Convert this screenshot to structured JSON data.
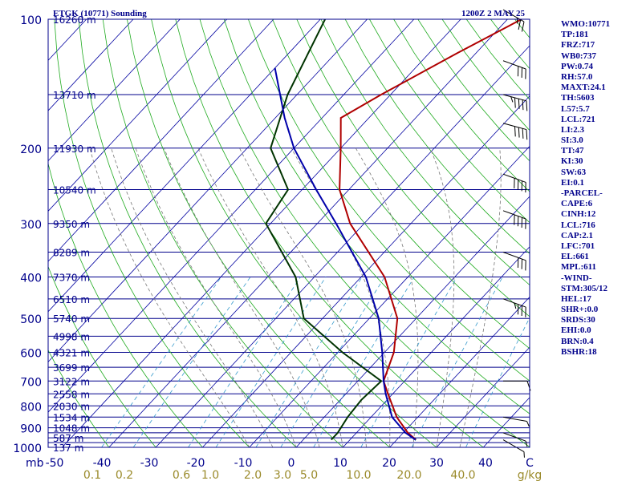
{
  "header": {
    "station": "ETGK (10771) Sounding",
    "time": "1200Z  2 MAY 25"
  },
  "height_labels": [
    "16260 m",
    "13710 m",
    "11930 m",
    "10540 m",
    "9350 m",
    "8289 m",
    "7370 m",
    "6510 m",
    "5740 m",
    "4998 m",
    "4321 m",
    "3699 m",
    "3122 m",
    "2558 m",
    "2030 m",
    "1534 m",
    "1048 m",
    "587 m",
    "137 m"
  ],
  "pressure_labels": [
    "100",
    "200",
    "300",
    "400",
    "500",
    "600",
    "700",
    "800",
    "900",
    "1000"
  ],
  "pressure_unit": "mb",
  "temp_labels": [
    "-50",
    "-40",
    "-30",
    "-20",
    "-10",
    "0",
    "10",
    "20",
    "30",
    "40",
    "C"
  ],
  "mixing_labels": [
    "0.1",
    "0.2",
    "0.6",
    "1.0",
    "2.0",
    "3.0",
    "5.0",
    "10.0",
    "20.0",
    "40.0",
    "g/kg"
  ],
  "stats": [
    "WMO:10771",
    "TP:181",
    "FRZ:717",
    "WB0:737",
    "PW:0.74",
    "RH:57.0",
    "MAXT:24.1",
    "TH:5603",
    "L57:5.7",
    "LCL:721",
    "LI:2.3",
    "SI:3.0",
    "TT:47",
    "KI:30",
    "SW:63",
    "EI:0.1",
    "-PARCEL-",
    "CAPE:6",
    "CINH:12",
    "LCL:716",
    "CAP:2.1",
    "LFC:701",
    "EL:661",
    "MPL:611",
    "-WIND-",
    "STM:305/12",
    "HEL:17",
    "SHR+:0.0",
    "SRDS:30",
    "EHI:0.0",
    "BRN:0.4",
    "BSHR:18"
  ],
  "colors": {
    "isobar": "#00008b",
    "isotherm": "#0000a0",
    "dry_adiabat": "#1faa1f",
    "moist_adiabat": "#777777",
    "mixing_ratio": "#3399cc",
    "temperature": "#b00000",
    "dewpoint": "#003300",
    "parcel": "#0000aa",
    "wind": "#000000"
  },
  "chart_data": {
    "type": "line",
    "diagram": "skew-T log-P",
    "title": "ETGK (10771) Sounding",
    "valid_time": "1200Z  2 MAY 25",
    "ylabel": "mb",
    "xlabel": "C",
    "ylim": [
      1000,
      100
    ],
    "xlim": [
      -50,
      50
    ],
    "y_scale": "log",
    "isobars_mb": [
      100,
      150,
      200,
      250,
      300,
      350,
      400,
      450,
      500,
      550,
      600,
      650,
      700,
      750,
      800,
      850,
      900,
      925,
      950,
      975,
      1000
    ],
    "isotherm_step_c": 10,
    "mixing_ratio_lines_gkg": [
      0.1,
      0.2,
      0.6,
      1.0,
      2.0,
      3.0,
      5.0,
      10.0,
      20.0,
      40.0
    ],
    "series": [
      {
        "name": "temperature",
        "points": [
          [
            960,
            24.1
          ],
          [
            925,
            21
          ],
          [
            850,
            15.5
          ],
          [
            750,
            9
          ],
          [
            700,
            5.5
          ],
          [
            600,
            2
          ],
          [
            500,
            -4
          ],
          [
            400,
            -15
          ],
          [
            300,
            -33
          ],
          [
            250,
            -42
          ],
          [
            200,
            -50
          ],
          [
            170,
            -56
          ],
          [
            150,
            -52
          ],
          [
            120,
            -44
          ],
          [
            100,
            -37
          ]
        ]
      },
      {
        "name": "dewpoint",
        "points": [
          [
            960,
            6
          ],
          [
            925,
            6
          ],
          [
            850,
            5
          ],
          [
            775,
            4.5
          ],
          [
            700,
            5
          ],
          [
            600,
            -9
          ],
          [
            500,
            -24
          ],
          [
            400,
            -34
          ],
          [
            300,
            -51
          ],
          [
            250,
            -53
          ],
          [
            200,
            -65
          ],
          [
            150,
            -72
          ],
          [
            100,
            -79
          ]
        ]
      },
      {
        "name": "parcel",
        "points": [
          [
            960,
            24
          ],
          [
            925,
            20.5
          ],
          [
            850,
            14.5
          ],
          [
            750,
            8.5
          ],
          [
            700,
            5.5
          ],
          [
            600,
            -0.5
          ],
          [
            500,
            -8
          ],
          [
            400,
            -19
          ],
          [
            300,
            -36
          ],
          [
            250,
            -47
          ],
          [
            200,
            -60
          ],
          [
            170,
            -68
          ],
          [
            130,
            -80
          ]
        ]
      }
    ],
    "wind_barbs": [
      {
        "p": 960,
        "dir": 300,
        "spd": 5
      },
      {
        "p": 925,
        "dir": 290,
        "spd": 5
      },
      {
        "p": 850,
        "dir": 280,
        "spd": 5
      },
      {
        "p": 700,
        "dir": 270,
        "spd": 10
      },
      {
        "p": 450,
        "dir": 290,
        "spd": 35
      },
      {
        "p": 350,
        "dir": 290,
        "spd": 30
      },
      {
        "p": 280,
        "dir": 290,
        "spd": 40
      },
      {
        "p": 230,
        "dir": 290,
        "spd": 40
      },
      {
        "p": 175,
        "dir": 285,
        "spd": 40
      },
      {
        "p": 150,
        "dir": 285,
        "spd": 45
      },
      {
        "p": 125,
        "dir": 290,
        "spd": 30
      },
      {
        "p": 95,
        "dir": 300,
        "spd": 25
      }
    ]
  }
}
